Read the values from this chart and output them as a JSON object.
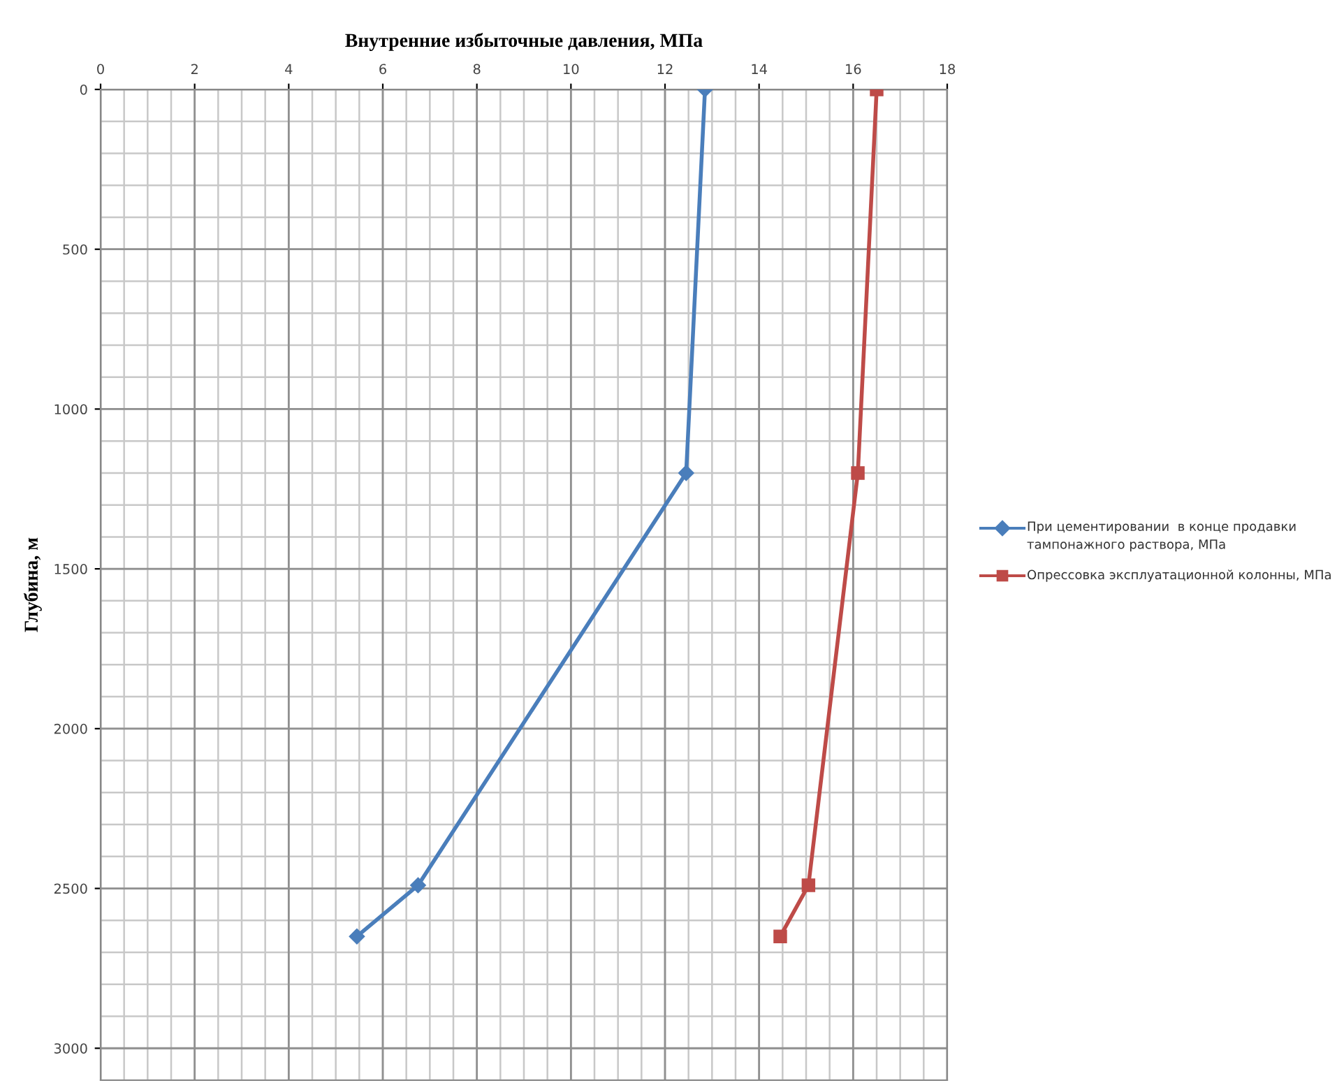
{
  "chart_data": {
    "type": "line",
    "title": "Внутренние избыточные давления, МПа",
    "ylabel": "Глубина, м",
    "series": [
      {
        "name": "При цементировании  в конце продавки  тампонажного раствора, МПа",
        "color": "#4a7ebb",
        "marker": "diamond",
        "x": [
          12.85,
          12.45,
          6.75,
          5.45
        ],
        "values": [
          0,
          1200,
          2490,
          2650
        ]
      },
      {
        "name": "Опрессовка эксплуатационной колонны, МПа",
        "color": "#be4b48",
        "marker": "square",
        "x": [
          16.5,
          16.1,
          15.05,
          14.45
        ],
        "values": [
          0,
          1200,
          2490,
          2650
        ]
      }
    ],
    "xlim": [
      0,
      18
    ],
    "xticks": [
      0,
      2,
      4,
      6,
      8,
      10,
      12,
      14,
      16,
      18
    ],
    "ylim": [
      3100,
      0
    ],
    "yticks": [
      0,
      500,
      1000,
      1500,
      2000,
      2500,
      3000
    ],
    "grid": true,
    "legend": "right"
  }
}
